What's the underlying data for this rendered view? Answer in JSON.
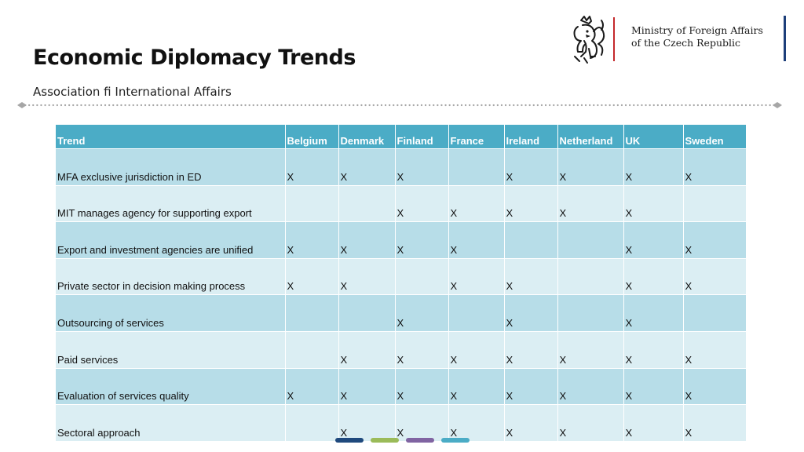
{
  "header": {
    "title": "Economic Diplomacy Trends",
    "subtitle": "Association fi International Affairs"
  },
  "logo": {
    "line1": "Ministry of Foreign Affairs",
    "line2": "of the Czech Republic",
    "accent_red": "#c4282b",
    "accent_blue": "#1d3f7a"
  },
  "table": {
    "header_color": "#4bacc6",
    "row_color_dark": "#b7dde8",
    "row_color_light": "#dbeef3",
    "columns": [
      "Trend",
      "Belgium",
      "Denmark",
      "Finland",
      "France",
      "Ireland",
      "Netherland",
      "UK",
      "Sweden"
    ],
    "rows": [
      [
        "MFA exclusive jurisdiction in ED",
        "X",
        "X",
        "X",
        "",
        "X",
        "X",
        "X",
        "X"
      ],
      [
        "MIT manages agency for supporting export",
        "",
        "",
        "X",
        "X",
        "X",
        "X",
        "X",
        ""
      ],
      [
        "Export and investment agencies are unified",
        "X",
        "X",
        "X",
        "X",
        "",
        "",
        "X",
        "X"
      ],
      [
        "Private sector in decision making process",
        "X",
        "X",
        "",
        "X",
        "X",
        "",
        "X",
        "X"
      ],
      [
        "Outsourcing of services",
        "",
        "",
        "X",
        "",
        "X",
        "",
        "X",
        ""
      ],
      [
        "Paid services",
        "",
        "X",
        "X",
        "X",
        "X",
        "X",
        "X",
        "X"
      ],
      [
        "Evaluation of services quality",
        "X",
        "X",
        "X",
        "X",
        "X",
        "X",
        "X",
        "X"
      ],
      [
        "Sectoral approach",
        "",
        "X",
        "X",
        "X",
        "X",
        "X",
        "X",
        "X"
      ]
    ]
  },
  "footer_dots": {
    "colors": [
      "#1f497d",
      "#9bbb59",
      "#8064a2",
      "#4bacc6"
    ]
  }
}
